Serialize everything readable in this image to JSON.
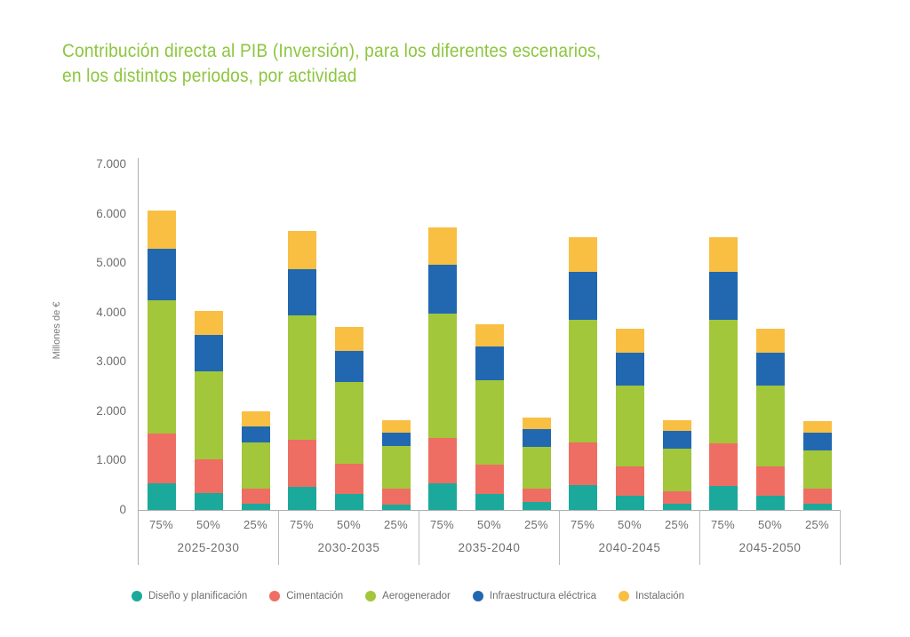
{
  "chart_data": {
    "type": "bar",
    "stacked": true,
    "title": "Contribución directa al PIB (Inversión), para los diferentes escenarios, en los distintos periodos, por actividad",
    "title_color": "#8DC63F",
    "ylabel": "Millones de €",
    "ylim": [
      0,
      7000
    ],
    "ytick_step": 1000,
    "ytick_labels": [
      "0",
      "1.000",
      "2.000",
      "3.000",
      "4.000",
      "5.000",
      "6.000",
      "7.000"
    ],
    "grid": false,
    "legend_position": "bottom",
    "axis_color": "#AEAFB1",
    "text_color": "#6D6E71",
    "series": [
      {
        "name": "Diseño y planificación",
        "color": "#1BA99B"
      },
      {
        "name": "Cimentación",
        "color": "#EF6E63"
      },
      {
        "name": "Aerogenerador",
        "color": "#A2C73B"
      },
      {
        "name": "Infraestructura eléctrica",
        "color": "#2168B1"
      },
      {
        "name": "Instalación",
        "color": "#F9BF42"
      }
    ],
    "scenarios": [
      "75%",
      "50%",
      "25%"
    ],
    "groups": [
      {
        "period": "2025-2030",
        "bars": [
          {
            "scenario": "75%",
            "values": [
              540,
              1000,
              2700,
              1050,
              780
            ],
            "total": 6070
          },
          {
            "scenario": "50%",
            "values": [
              340,
              690,
              1770,
              750,
              490
            ],
            "total": 4040
          },
          {
            "scenario": "25%",
            "values": [
              130,
              310,
              930,
              320,
              300
            ],
            "total": 1990
          }
        ]
      },
      {
        "period": "2030-2035",
        "bars": [
          {
            "scenario": "75%",
            "values": [
              470,
              950,
              2530,
              930,
              770
            ],
            "total": 5650
          },
          {
            "scenario": "50%",
            "values": [
              320,
              620,
              1660,
              620,
              480
            ],
            "total": 3700
          },
          {
            "scenario": "25%",
            "values": [
              100,
              330,
              870,
              270,
              250
            ],
            "total": 1820
          }
        ]
      },
      {
        "period": "2035-2040",
        "bars": [
          {
            "scenario": "75%",
            "values": [
              540,
              920,
              2520,
              990,
              750
            ],
            "total": 5720
          },
          {
            "scenario": "50%",
            "values": [
              320,
              600,
              1710,
              690,
              440
            ],
            "total": 3760
          },
          {
            "scenario": "25%",
            "values": [
              160,
              270,
              850,
              360,
              230
            ],
            "total": 1870
          }
        ]
      },
      {
        "period": "2040-2045",
        "bars": [
          {
            "scenario": "75%",
            "values": [
              500,
              870,
              2480,
              970,
              710
            ],
            "total": 5530
          },
          {
            "scenario": "50%",
            "values": [
              290,
              600,
              1640,
              660,
              490
            ],
            "total": 3680
          },
          {
            "scenario": "25%",
            "values": [
              120,
              260,
              860,
              360,
              210
            ],
            "total": 1810
          }
        ]
      },
      {
        "period": "2045-2050",
        "bars": [
          {
            "scenario": "75%",
            "values": [
              490,
              870,
              2490,
              970,
              710
            ],
            "total": 5530
          },
          {
            "scenario": "50%",
            "values": [
              290,
              600,
              1640,
              660,
              490
            ],
            "total": 3680
          },
          {
            "scenario": "25%",
            "values": [
              130,
              300,
              780,
              350,
              240
            ],
            "total": 1800
          }
        ]
      }
    ]
  }
}
